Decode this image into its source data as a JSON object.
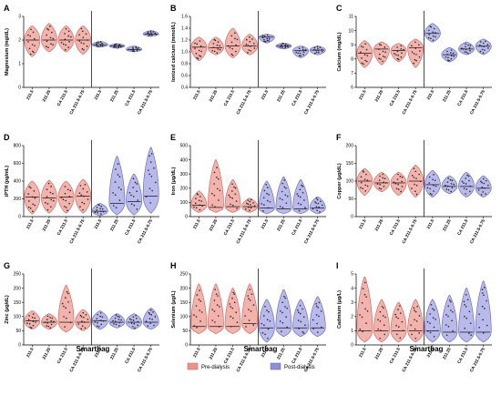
{
  "figure": {
    "x_group_title": "Smartbag",
    "legend": [
      {
        "label": "Pre-dialysis",
        "color": "#e8938f"
      },
      {
        "label": "Post-dialysis",
        "color": "#8f8fd4"
      }
    ],
    "colors": {
      "pre_fill": "#f2b3ad",
      "pre_stroke": "#c8605a",
      "post_fill": "#b9b9ec",
      "post_stroke": "#6060b0",
      "point": "#222222"
    }
  },
  "chart_data": [
    {
      "panel": "A",
      "type": "violin",
      "ylabel": "Magnesium (mg/dL)",
      "ylim": [
        0,
        3
      ],
      "yticks": [
        "0",
        "1",
        "2",
        "3"
      ],
      "categories": [
        "211.5",
        "211.25",
        "CA 211.5",
        "CA 211.5-0.75",
        "211.5",
        "211.25",
        "CA 211.5",
        "CA 211.5-0.75"
      ],
      "series": [
        {
          "name": "Pre-dialysis",
          "medians": [
            2.0,
            2.0,
            2.0,
            2.0
          ],
          "mins": [
            1.3,
            1.5,
            1.5,
            1.4
          ],
          "maxs": [
            2.6,
            2.7,
            2.6,
            2.6
          ]
        },
        {
          "name": "Post-dialysis",
          "medians": [
            1.8,
            1.75,
            1.6,
            2.25
          ],
          "mins": [
            1.7,
            1.65,
            1.5,
            2.15
          ],
          "maxs": [
            1.95,
            1.85,
            1.75,
            2.4
          ]
        }
      ]
    },
    {
      "panel": "B",
      "type": "violin",
      "ylabel": "Ionized calcium (mmol/L)",
      "ylim": [
        0.4,
        1.6
      ],
      "yticks": [
        "0.4",
        "0.6",
        "0.8",
        "1.0",
        "1.2",
        "1.4",
        "1.6"
      ],
      "categories": [
        "211.5",
        "211.25",
        "CA 211.5",
        "CA 211.5-0.75",
        "211.5",
        "211.25",
        "CA 211.5",
        "CA 211.5-0.75"
      ],
      "series": [
        {
          "name": "Pre-dialysis",
          "medians": [
            1.08,
            1.07,
            1.1,
            1.1
          ],
          "mins": [
            0.85,
            0.95,
            0.9,
            0.95
          ],
          "maxs": [
            1.25,
            1.25,
            1.4,
            1.3
          ]
        },
        {
          "name": "Post-dialysis",
          "medians": [
            1.25,
            1.1,
            1.02,
            1.03
          ],
          "mins": [
            1.15,
            1.05,
            0.9,
            0.95
          ],
          "maxs": [
            1.3,
            1.15,
            1.1,
            1.1
          ]
        }
      ]
    },
    {
      "panel": "C",
      "type": "violin",
      "ylabel": "Calcium (mg/dL)",
      "ylim": [
        6,
        11
      ],
      "yticks": [
        "6",
        "7",
        "8",
        "9",
        "10",
        "11"
      ],
      "categories": [
        "211.5",
        "211.25",
        "CA 211.5",
        "CA 211.5-0.75",
        "211.5",
        "211.25",
        "CA 211.5",
        "CA 211.5-0.75"
      ],
      "series": [
        {
          "name": "Pre-dialysis",
          "medians": [
            8.4,
            8.7,
            8.6,
            8.8
          ],
          "mins": [
            7.4,
            7.6,
            7.8,
            7.4
          ],
          "maxs": [
            9.3,
            9.2,
            9.1,
            9.4
          ]
        },
        {
          "name": "Post-dialysis",
          "medians": [
            9.8,
            8.3,
            8.7,
            8.9
          ],
          "mins": [
            9.2,
            7.8,
            8.3,
            8.3
          ],
          "maxs": [
            10.5,
            8.8,
            9.2,
            9.4
          ]
        }
      ]
    },
    {
      "panel": "D",
      "type": "violin",
      "ylabel": "iPTH (pg/mL)",
      "ylim": [
        0,
        800
      ],
      "yticks": [
        "0",
        "200",
        "400",
        "600",
        "800"
      ],
      "categories": [
        "211.5",
        "211.25",
        "CA 211.5",
        "CA 211.5-0.75",
        "211.5",
        "211.25",
        "CA 211.5",
        "CA 211.5-0.75"
      ],
      "series": [
        {
          "name": "Pre-dialysis",
          "medians": [
            220,
            210,
            220,
            230
          ],
          "mins": [
            30,
            40,
            40,
            40
          ],
          "maxs": [
            400,
            410,
            400,
            420
          ]
        },
        {
          "name": "Post-dialysis",
          "medians": [
            60,
            150,
            170,
            230
          ],
          "mins": [
            10,
            20,
            20,
            40
          ],
          "maxs": [
            150,
            680,
            480,
            780
          ]
        }
      ]
    },
    {
      "panel": "E",
      "type": "violin",
      "ylabel": "Iron (μg/dL)",
      "ylim": [
        0,
        500
      ],
      "yticks": [
        "0",
        "100",
        "200",
        "300",
        "400",
        "500"
      ],
      "categories": [
        "211.5",
        "211.25",
        "CA 211.5",
        "CA 211.5-0.75",
        "211.5",
        "211.25",
        "CA 211.5",
        "CA 211.5-0.75"
      ],
      "series": [
        {
          "name": "Pre-dialysis",
          "medians": [
            80,
            65,
            70,
            70
          ],
          "mins": [
            30,
            30,
            30,
            30
          ],
          "maxs": [
            180,
            400,
            260,
            130
          ]
        },
        {
          "name": "Post-dialysis",
          "medians": [
            60,
            55,
            55,
            60
          ],
          "mins": [
            20,
            20,
            20,
            20
          ],
          "maxs": [
            250,
            280,
            260,
            140
          ]
        }
      ]
    },
    {
      "panel": "F",
      "type": "violin",
      "ylabel": "Copper (μg/dL)",
      "ylim": [
        0,
        200
      ],
      "yticks": [
        "0",
        "50",
        "100",
        "150",
        "200"
      ],
      "categories": [
        "211.5",
        "211.25",
        "CA 211.5",
        "CA 211.5-0.75",
        "211.5",
        "211.25",
        "CA 211.5",
        "CA 211.5-0.75"
      ],
      "series": [
        {
          "name": "Pre-dialysis",
          "medians": [
            100,
            95,
            95,
            100
          ],
          "mins": [
            60,
            70,
            60,
            55
          ],
          "maxs": [
            135,
            125,
            125,
            145
          ]
        },
        {
          "name": "Post-dialysis",
          "medians": [
            90,
            85,
            85,
            80
          ],
          "mins": [
            55,
            65,
            55,
            55
          ],
          "maxs": [
            130,
            115,
            125,
            115
          ]
        }
      ]
    },
    {
      "panel": "G",
      "type": "violin",
      "ylabel": "Zinc (μg/dL)",
      "ylim": [
        0,
        250
      ],
      "yticks": [
        "0",
        "50",
        "100",
        "150",
        "200",
        "250"
      ],
      "categories": [
        "211.5",
        "211.25",
        "CA 211.5",
        "CA 211.5-0.75",
        "211.5",
        "211.25",
        "CA 211.5",
        "CA 211.5-0.75"
      ],
      "series": [
        {
          "name": "Pre-dialysis",
          "medians": [
            85,
            80,
            80,
            80
          ],
          "mins": [
            55,
            55,
            45,
            50
          ],
          "maxs": [
            120,
            110,
            210,
            125
          ]
        },
        {
          "name": "Post-dialysis",
          "medians": [
            85,
            80,
            80,
            80
          ],
          "mins": [
            55,
            60,
            55,
            55
          ],
          "maxs": [
            120,
            110,
            110,
            130
          ]
        }
      ]
    },
    {
      "panel": "H",
      "type": "violin",
      "ylabel": "Selenium (μg/L)",
      "ylim": [
        0,
        250
      ],
      "yticks": [
        "0",
        "50",
        "100",
        "150",
        "200",
        "250"
      ],
      "categories": [
        "211.5",
        "211.25",
        "CA 211.5",
        "CA 211.5-0.75",
        "211.5",
        "211.25",
        "CA 211.5",
        "CA 211.5-0.75"
      ],
      "series": [
        {
          "name": "Pre-dialysis",
          "medians": [
            65,
            65,
            65,
            75
          ],
          "mins": [
            40,
            40,
            40,
            40
          ],
          "maxs": [
            215,
            215,
            200,
            215
          ]
        },
        {
          "name": "Post-dialysis",
          "medians": [
            60,
            60,
            60,
            60
          ],
          "mins": [
            10,
            30,
            30,
            30
          ],
          "maxs": [
            160,
            195,
            160,
            170
          ]
        }
      ]
    },
    {
      "panel": "I",
      "type": "violin",
      "ylabel": "Cadmium (μg/L)",
      "ylim": [
        0,
        5
      ],
      "yticks": [
        "0",
        "1",
        "2",
        "3",
        "4",
        "5"
      ],
      "categories": [
        "211.5",
        "211.25",
        "CA 211.5",
        "CA 211.5-0.75",
        "211.5",
        "211.25",
        "CA 211.5",
        "CA 211.5-0.75"
      ],
      "series": [
        {
          "name": "Pre-dialysis",
          "medians": [
            1.0,
            1.0,
            1.0,
            1.0
          ],
          "mins": [
            0.2,
            0.2,
            0.2,
            0.2
          ],
          "maxs": [
            4.8,
            3.2,
            3.0,
            3.2
          ]
        },
        {
          "name": "Post-dialysis",
          "medians": [
            1.0,
            0.9,
            0.9,
            0.9
          ],
          "mins": [
            0.2,
            0.2,
            0.2,
            0.2
          ],
          "maxs": [
            3.2,
            3.5,
            4.0,
            4.5
          ]
        }
      ]
    }
  ]
}
